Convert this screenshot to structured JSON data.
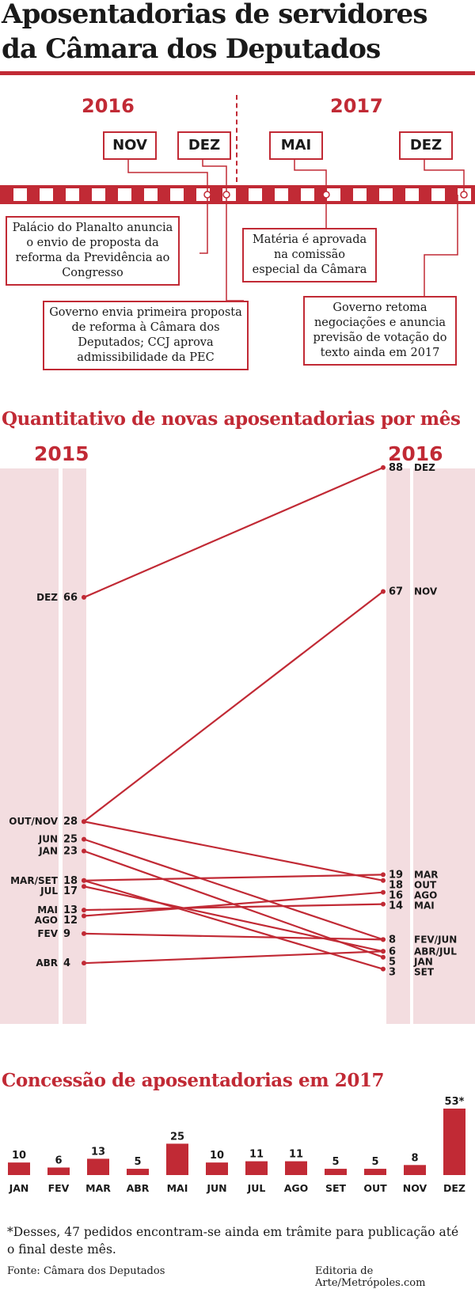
{
  "title": "Aposentadorias de servidores da Câmara dos Deputados",
  "timeline": {
    "years": [
      "2016",
      "2017"
    ],
    "months": [
      "NOV",
      "DEZ",
      "MAI",
      "DEZ"
    ],
    "events": [
      "Palácio do Planalto anuncia o envio de proposta da reforma da Previdência ao Congresso",
      "Governo envia primeira proposta de reforma à Câmara dos Deputados; CCJ aprova admissibilidade da PEC",
      "Matéria é aprovada na comissão especial da Câmara",
      "Governo retoma negociações e anuncia previsão de votação do texto ainda em 2017"
    ]
  },
  "slope_title": "Quantitativo de novas aposentadorias por mês",
  "bar_title": "Concessão de aposentadorias em 2017",
  "footnote": "*Desses, 47 pedidos encontram-se ainda em trâmite para publicação até o final deste mês.",
  "source": "Fonte: Câmara dos Deputados",
  "credit": "Editoria de Arte/Metrópoles.com",
  "colors": {
    "accent": "#c12a35",
    "band": "#f3dde0",
    "text": "#1a1a1a"
  },
  "chart_data": [
    {
      "type": "line",
      "subtype": "slope",
      "title": "Quantitativo de novas aposentadorias por mês",
      "x": [
        "2015",
        "2016"
      ],
      "ylim": [
        0,
        90
      ],
      "series": [
        {
          "name": "JAN",
          "values": [
            23,
            5
          ]
        },
        {
          "name": "FEV",
          "values": [
            9,
            8
          ]
        },
        {
          "name": "MAR",
          "values": [
            18,
            19
          ]
        },
        {
          "name": "ABR",
          "values": [
            4,
            6
          ]
        },
        {
          "name": "MAI",
          "values": [
            13,
            14
          ]
        },
        {
          "name": "JUN",
          "values": [
            25,
            8
          ]
        },
        {
          "name": "JUL",
          "values": [
            17,
            6
          ]
        },
        {
          "name": "AGO",
          "values": [
            12,
            16
          ]
        },
        {
          "name": "SET",
          "values": [
            18,
            3
          ]
        },
        {
          "name": "OUT",
          "values": [
            28,
            18
          ]
        },
        {
          "name": "NOV",
          "values": [
            28,
            67
          ]
        },
        {
          "name": "DEZ",
          "values": [
            66,
            88
          ]
        }
      ],
      "left_labels": [
        {
          "months": "DEZ",
          "value": "66"
        },
        {
          "months": "OUT/NOV",
          "value": "28"
        },
        {
          "months": "JUN",
          "value": "25"
        },
        {
          "months": "JAN",
          "value": "23"
        },
        {
          "months": "MAR/SET",
          "value": "18"
        },
        {
          "months": "JUL",
          "value": "17"
        },
        {
          "months": "MAI",
          "value": "13"
        },
        {
          "months": "AGO",
          "value": "12"
        },
        {
          "months": "FEV",
          "value": "9"
        },
        {
          "months": "ABR",
          "value": "4"
        }
      ],
      "right_labels": [
        {
          "months": "DEZ",
          "value": "88"
        },
        {
          "months": "NOV",
          "value": "67"
        },
        {
          "months": "MAR",
          "value": "19"
        },
        {
          "months": "OUT",
          "value": "18"
        },
        {
          "months": "AGO",
          "value": "16"
        },
        {
          "months": "MAI",
          "value": "14"
        },
        {
          "months": "FEV/JUN",
          "value": "8"
        },
        {
          "months": "ABR/JUL",
          "value": "6"
        },
        {
          "months": "JAN",
          "value": "5"
        },
        {
          "months": "SET",
          "value": "3"
        }
      ]
    },
    {
      "type": "bar",
      "title": "Concessão de aposentadorias em 2017",
      "categories": [
        "JAN",
        "FEV",
        "MAR",
        "ABR",
        "MAI",
        "JUN",
        "JUL",
        "AGO",
        "SET",
        "OUT",
        "NOV",
        "DEZ"
      ],
      "values": [
        10,
        6,
        13,
        5,
        25,
        10,
        11,
        11,
        5,
        5,
        8,
        53
      ],
      "value_labels": [
        "10",
        "6",
        "13",
        "5",
        "25",
        "10",
        "11",
        "11",
        "5",
        "5",
        "8",
        "53*"
      ],
      "ylim": [
        0,
        53
      ]
    }
  ]
}
